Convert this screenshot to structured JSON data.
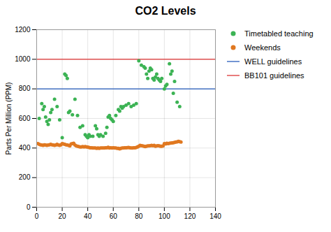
{
  "chart_data": {
    "type": "scatter",
    "title": "CO2 Levels",
    "ylabel": "Parts Per Million (PPM)",
    "xlim": [
      0,
      140
    ],
    "ylim": [
      0,
      1200
    ],
    "xticks": [
      0,
      20,
      40,
      60,
      80,
      100,
      120,
      140
    ],
    "yticks": [
      0,
      200,
      400,
      600,
      800,
      1000,
      1200
    ],
    "grid": true,
    "legend": "right",
    "series": [
      {
        "name": "Timetabled teaching",
        "type": "scatter",
        "color": "#3CB354",
        "marker": "o",
        "x": [
          2,
          4,
          5,
          6,
          7,
          8,
          9,
          10,
          11,
          12,
          14,
          16,
          18,
          20,
          22,
          23,
          24,
          25,
          26,
          28,
          30,
          32,
          34,
          36,
          38,
          39,
          40,
          41,
          42,
          44,
          46,
          47,
          48,
          49,
          50,
          52,
          54,
          55,
          56,
          57,
          58,
          59,
          60,
          62,
          64,
          65,
          66,
          67,
          68,
          70,
          72,
          74,
          76,
          78,
          80,
          82,
          84,
          85,
          86,
          87,
          88,
          89,
          90,
          91,
          92,
          93,
          94,
          95,
          96,
          97,
          98,
          100,
          101,
          102,
          104,
          105,
          106,
          107,
          108,
          110,
          112
        ],
        "values": [
          600,
          700,
          660,
          680,
          610,
          580,
          560,
          590,
          640,
          660,
          730,
          680,
          590,
          470,
          900,
          890,
          870,
          640,
          650,
          625,
          730,
          620,
          540,
          550,
          490,
          480,
          470,
          490,
          480,
          480,
          550,
          530,
          490,
          480,
          490,
          480,
          500,
          540,
          610,
          620,
          600,
          590,
          580,
          620,
          660,
          650,
          680,
          670,
          680,
          690,
          700,
          680,
          690,
          700,
          990,
          960,
          950,
          940,
          900,
          870,
          920,
          940,
          930,
          870,
          860,
          880,
          900,
          870,
          860,
          850,
          870,
          800,
          820,
          830,
          970,
          900,
          920,
          770,
          850,
          710,
          680
        ]
      },
      {
        "name": "Weekends",
        "type": "scatter",
        "color": "#E07820",
        "marker": "o",
        "x": [
          1,
          2,
          3,
          4,
          5,
          6,
          7,
          8,
          9,
          10,
          11,
          12,
          13,
          14,
          15,
          16,
          17,
          18,
          19,
          20,
          21,
          22,
          23,
          24,
          25,
          26,
          27,
          28,
          29,
          30,
          31,
          32,
          33,
          34,
          35,
          36,
          37,
          38,
          39,
          40,
          41,
          42,
          43,
          44,
          45,
          46,
          47,
          48,
          49,
          50,
          51,
          52,
          53,
          54,
          55,
          56,
          57,
          58,
          59,
          60,
          61,
          62,
          63,
          64,
          65,
          66,
          67,
          68,
          69,
          70,
          71,
          72,
          73,
          74,
          75,
          76,
          77,
          78,
          79,
          80,
          81,
          82,
          83,
          84,
          85,
          86,
          87,
          88,
          89,
          90,
          91,
          92,
          93,
          94,
          95,
          96,
          97,
          98,
          99,
          100,
          101,
          102,
          103,
          104,
          105,
          106,
          107,
          108,
          109,
          110,
          111,
          112,
          113
        ],
        "values": [
          430,
          425,
          422,
          420,
          418,
          422,
          420,
          418,
          420,
          422,
          425,
          422,
          420,
          418,
          420,
          425,
          420,
          418,
          422,
          430,
          428,
          425,
          422,
          420,
          418,
          415,
          428,
          430,
          432,
          420,
          415,
          412,
          410,
          408,
          408,
          410,
          408,
          410,
          408,
          406,
          404,
          402,
          402,
          400,
          400,
          400,
          398,
          400,
          398,
          400,
          400,
          400,
          400,
          402,
          402,
          405,
          400,
          402,
          400,
          402,
          400,
          400,
          398,
          398,
          395,
          398,
          400,
          400,
          402,
          402,
          403,
          404,
          402,
          400,
          400,
          401,
          402,
          404,
          408,
          412,
          418,
          416,
          414,
          412,
          410,
          412,
          414,
          415,
          416,
          418,
          416,
          418,
          412,
          414,
          416,
          414,
          412,
          412,
          414,
          430,
          428,
          432,
          430,
          432,
          434,
          435,
          436,
          438,
          440,
          442,
          445,
          443,
          440
        ]
      },
      {
        "name": "WELL guidelines",
        "type": "hline",
        "color": "#4472C4",
        "line_style": "solid",
        "values": [
          800
        ]
      },
      {
        "name": "BB101 guidelines",
        "type": "hline",
        "color": "#E05050",
        "line_style": "solid",
        "values": [
          1000
        ]
      }
    ]
  }
}
